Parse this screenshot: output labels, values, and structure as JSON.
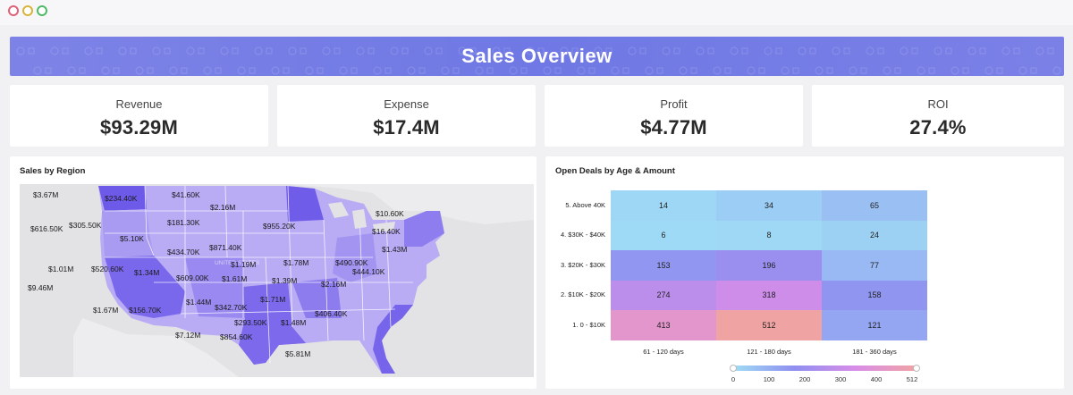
{
  "window": {
    "controls": [
      "close",
      "minimize",
      "maximize"
    ]
  },
  "header": {
    "title": "Sales Overview"
  },
  "kpis": [
    {
      "label": "Revenue",
      "value": "$93.29M"
    },
    {
      "label": "Expense",
      "value": "$17.4M"
    },
    {
      "label": "Profit",
      "value": "$4.77M"
    },
    {
      "label": "ROI",
      "value": "27.4%"
    }
  ],
  "map": {
    "title": "Sales by Region",
    "labels": [
      "$3.67M",
      "$234.40K",
      "$41.60K",
      "$2.16M",
      "$10.60K",
      "$305.50K",
      "$181.30K",
      "$955.20K",
      "$16.40K",
      "$616.50K",
      "$5.10K",
      "$871.40K",
      "$1.43M",
      "$434.70K",
      "$490.90K",
      "$1.01M",
      "$520.60K",
      "$1.34M",
      "$1.19M",
      "$1.78M",
      "$444.10K",
      "$609.00K",
      "$1.61M",
      "$1.39M",
      "$9.46M",
      "$2.16M",
      "$1.71M",
      "$1.44M",
      "$342.70K",
      "$406.40K",
      "$1.67M",
      "$156.70K",
      "$293.50K",
      "$1.48M",
      "$7.12M",
      "$854.60K",
      "$5.81M"
    ]
  },
  "heatmap": {
    "title": "Open Deals by Age & Amount",
    "rows": [
      "5. Above 40K",
      "4. $30K - $40K",
      "3. $20K - $30K",
      "2. $10K - $20K",
      "1. 0 - $10K"
    ],
    "columns": [
      "61 - 120 days",
      "121 - 180 days",
      "181 - 360 days"
    ],
    "values": [
      [
        14,
        34,
        65
      ],
      [
        6,
        8,
        24
      ],
      [
        153,
        196,
        77
      ],
      [
        274,
        318,
        158
      ],
      [
        413,
        512,
        121
      ]
    ],
    "legend": {
      "ticks": [
        "0",
        "100",
        "200",
        "300",
        "400",
        "512"
      ],
      "colors": [
        "#9fdcf5",
        "#8f8ff0",
        "#d88de8",
        "#f0a3a3"
      ]
    }
  }
}
